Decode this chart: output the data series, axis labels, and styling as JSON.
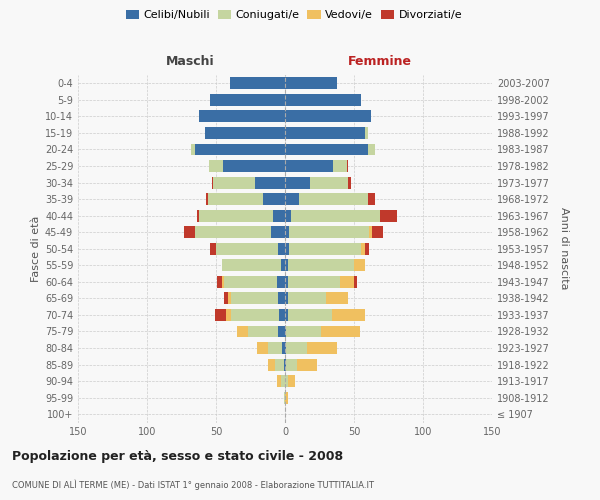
{
  "age_groups": [
    "0-4",
    "5-9",
    "10-14",
    "15-19",
    "20-24",
    "25-29",
    "30-34",
    "35-39",
    "40-44",
    "45-49",
    "50-54",
    "55-59",
    "60-64",
    "65-69",
    "70-74",
    "75-79",
    "80-84",
    "85-89",
    "90-94",
    "95-99",
    "100+"
  ],
  "birth_years": [
    "2003-2007",
    "1998-2002",
    "1993-1997",
    "1988-1992",
    "1983-1987",
    "1978-1982",
    "1973-1977",
    "1968-1972",
    "1963-1967",
    "1958-1962",
    "1953-1957",
    "1948-1952",
    "1943-1947",
    "1938-1942",
    "1933-1937",
    "1928-1932",
    "1923-1927",
    "1918-1922",
    "1913-1917",
    "1908-1912",
    "≤ 1907"
  ],
  "male": {
    "celibi": [
      40,
      54,
      62,
      58,
      65,
      45,
      22,
      16,
      9,
      10,
      5,
      3,
      6,
      5,
      4,
      5,
      2,
      1,
      0,
      0,
      0
    ],
    "coniugati": [
      0,
      0,
      0,
      0,
      3,
      10,
      30,
      40,
      53,
      55,
      45,
      43,
      38,
      34,
      35,
      22,
      10,
      6,
      3,
      1,
      0
    ],
    "vedovi": [
      0,
      0,
      0,
      0,
      0,
      0,
      0,
      0,
      0,
      0,
      0,
      0,
      2,
      2,
      4,
      8,
      8,
      5,
      3,
      0,
      0
    ],
    "divorziati": [
      0,
      0,
      0,
      0,
      0,
      0,
      1,
      1,
      2,
      8,
      4,
      0,
      3,
      3,
      8,
      0,
      0,
      0,
      0,
      0,
      0
    ]
  },
  "female": {
    "nubili": [
      38,
      55,
      62,
      58,
      60,
      35,
      18,
      10,
      4,
      3,
      3,
      2,
      2,
      2,
      2,
      1,
      1,
      1,
      0,
      0,
      0
    ],
    "coniugate": [
      0,
      0,
      0,
      2,
      5,
      10,
      28,
      50,
      65,
      58,
      52,
      48,
      38,
      28,
      32,
      25,
      15,
      8,
      2,
      0,
      0
    ],
    "vedove": [
      0,
      0,
      0,
      0,
      0,
      0,
      0,
      0,
      0,
      2,
      3,
      8,
      10,
      16,
      24,
      28,
      22,
      14,
      5,
      2,
      0
    ],
    "divorziate": [
      0,
      0,
      0,
      0,
      0,
      1,
      2,
      5,
      12,
      8,
      3,
      0,
      2,
      0,
      0,
      0,
      0,
      0,
      0,
      0,
      0
    ]
  },
  "colors": {
    "celibi": "#3a6ea5",
    "coniugati": "#c5d5a0",
    "vedovi": "#f0c060",
    "divorziati": "#c0392b"
  },
  "xlim": 150,
  "title": "Popolazione per età, sesso e stato civile - 2008",
  "subtitle": "COMUNE DI ALÌ TERME (ME) - Dati ISTAT 1° gennaio 2008 - Elaborazione TUTTITALIA.IT",
  "ylabel_left": "Fasce di età",
  "ylabel_right": "Anni di nascita",
  "xlabel_left": "Maschi",
  "xlabel_right": "Femmine",
  "bg_color": "#f8f8f8",
  "grid_color": "#cccccc",
  "legend_labels": [
    "Celibi/Nubili",
    "Coniugati/e",
    "Vedovi/e",
    "Divorziati/e"
  ]
}
